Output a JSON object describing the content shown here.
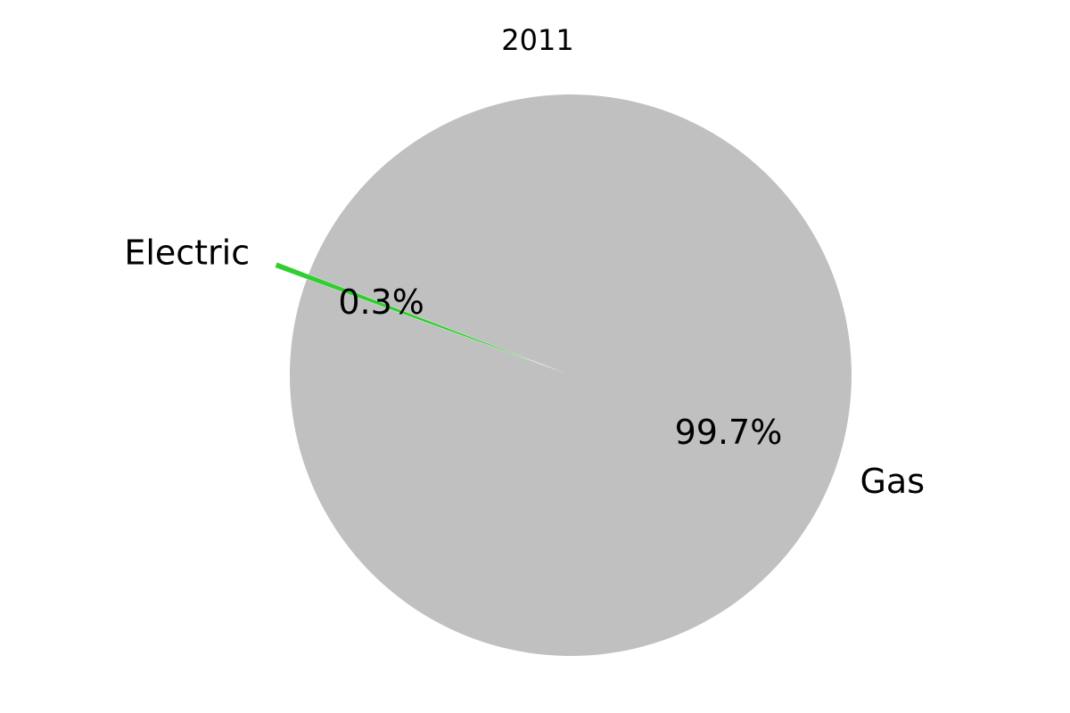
{
  "chart_data": {
    "type": "pie",
    "title": "2011",
    "categories": [
      "Gas",
      "Electric"
    ],
    "values": [
      99.7,
      0.3
    ],
    "value_labels": [
      "99.7%",
      "0.3%"
    ],
    "colors": [
      "#c0c0c0",
      "#32cd32"
    ],
    "exploded": [
      "Electric"
    ],
    "legend": "none"
  }
}
